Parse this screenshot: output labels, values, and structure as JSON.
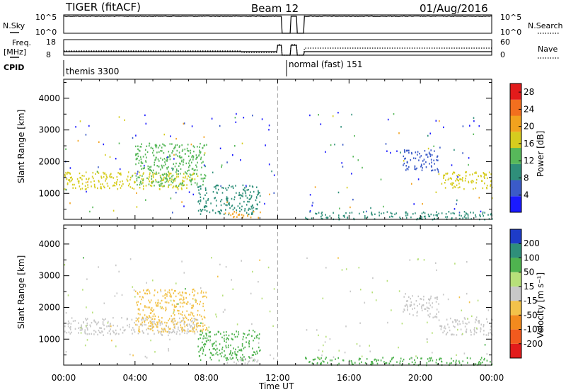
{
  "header": {
    "radar": "TIGER (fitACF)",
    "beam": "Beam 12",
    "date": "01/Aug/2016"
  },
  "top_panels": {
    "nsky_label": "N.Sky",
    "nsky_ticks": [
      "10^5",
      "10^0"
    ],
    "nsearch_ticks": [
      "10^5",
      "10^0"
    ],
    "nsearch_label": "N.Search",
    "freq_label": "Freq.",
    "freq_unit": "[MHz]",
    "freq_ticks": [
      "18",
      "8"
    ],
    "nave_ticks": [
      "60",
      "0"
    ],
    "nave_label": "Nave",
    "cpid_label": "CPID",
    "cpid_segments": [
      {
        "label": "themis 3300",
        "start_h": 0.0,
        "end_h": 12.0
      },
      {
        "label": "normal (fast) 151",
        "start_h": 12.0,
        "end_h": 24.0
      }
    ]
  },
  "chart_data": [
    {
      "type": "heatmap",
      "name": "Power",
      "ylabel": "Slant Range [km]",
      "ylim": [
        180,
        4600
      ],
      "yticks": [
        "1000",
        "2000",
        "3000",
        "4000"
      ],
      "xlim": [
        0,
        24
      ],
      "colorbar": {
        "label": "Power [dB]",
        "ticks": [
          "4",
          "8",
          "12",
          "16",
          "20",
          "24",
          "28"
        ],
        "range": [
          0,
          30
        ],
        "colors": [
          "#1a1aff",
          "#3b5bc8",
          "#2f8f7a",
          "#57b85a",
          "#d6cc1e",
          "#f2a21e",
          "#f26f1e",
          "#e21b1b"
        ]
      },
      "regions": [
        {
          "t0": 0.0,
          "t1": 7.5,
          "r0": 1150,
          "r1": 1700,
          "level": 18
        },
        {
          "t0": 4.0,
          "t1": 8.0,
          "r0": 1250,
          "r1": 2600,
          "level": 12
        },
        {
          "t0": 7.5,
          "t1": 11.0,
          "r0": 350,
          "r1": 1300,
          "level": 10
        },
        {
          "t0": 9.0,
          "t1": 11.0,
          "r0": 250,
          "r1": 450,
          "level": 22
        },
        {
          "t0": 13.5,
          "t1": 24.0,
          "r0": 200,
          "r1": 450,
          "level": 8
        },
        {
          "t0": 19.0,
          "t1": 21.0,
          "r0": 1700,
          "r1": 2400,
          "level": 6
        },
        {
          "t0": 21.0,
          "t1": 24.0,
          "r0": 1150,
          "r1": 1700,
          "level": 16
        }
      ]
    },
    {
      "type": "heatmap",
      "name": "Velocity",
      "ylabel": "Slant Range [km]",
      "ylim": [
        180,
        4600
      ],
      "yticks": [
        "1000",
        "2000",
        "3000",
        "4000"
      ],
      "xlim": [
        0,
        24
      ],
      "colorbar": {
        "label": "Velocity [m s⁻¹]",
        "ticks": [
          "200",
          "100",
          "50",
          "15",
          "-15",
          "-50",
          "-100",
          "-200"
        ],
        "colors": [
          "#1e3cc8",
          "#2f8f7a",
          "#4fb34f",
          "#b7e07a",
          "#c8c8c8",
          "#f2c24a",
          "#f28a1e",
          "#f25a1e",
          "#e21b1b"
        ]
      },
      "regions": [
        {
          "t0": 0.0,
          "t1": 7.5,
          "r0": 1150,
          "r1": 1700,
          "level": 0
        },
        {
          "t0": 4.0,
          "t1": 8.0,
          "r0": 1250,
          "r1": 2600,
          "level": -20
        },
        {
          "t0": 7.5,
          "t1": 11.0,
          "r0": 350,
          "r1": 1300,
          "level": 20
        },
        {
          "t0": 9.0,
          "t1": 11.0,
          "r0": 250,
          "r1": 450,
          "level": 0
        },
        {
          "t0": 13.5,
          "t1": 24.0,
          "r0": 200,
          "r1": 450,
          "level": 30
        },
        {
          "t0": 19.0,
          "t1": 21.0,
          "r0": 1700,
          "r1": 2400,
          "level": 0
        },
        {
          "t0": 21.0,
          "t1": 24.0,
          "r0": 1150,
          "r1": 1700,
          "level": 0
        }
      ]
    }
  ],
  "x_axis": {
    "ticks": [
      "00:00",
      "04:00",
      "08:00",
      "12:00",
      "16:00",
      "20:00",
      "00:00"
    ],
    "label": "Time UT"
  }
}
